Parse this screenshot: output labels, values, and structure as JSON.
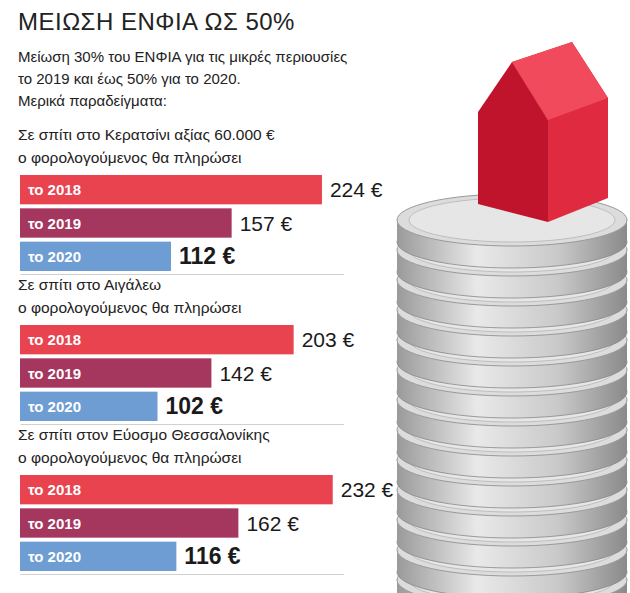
{
  "header": {
    "title": "ΜΕΙΩΣΗ ΕΝΦΙΑ ΩΣ 50%",
    "subtitle": [
      "Μείωση 30% του ΕΝΦΙΑ για τις μικρές περιουσίες",
      "το 2019 και έως 50% για το 2020.",
      "Μερικά παραδείγματα:"
    ]
  },
  "chart_data": [
    {
      "type": "bar",
      "orientation": "horizontal",
      "title": [
        "Σε σπίτι στο Κερατσίνι αξίας 60.000 €",
        "ο φορολογούμενος θα πληρώσει"
      ],
      "categories": [
        "το 2018",
        "το 2019",
        "το 2020"
      ],
      "values": [
        224,
        157,
        112
      ],
      "value_labels": [
        "224 €",
        "157 €",
        "112 €"
      ],
      "colors": [
        "#e8434f",
        "#a5365e",
        "#6d9dd3"
      ],
      "xlim": [
        0,
        240
      ],
      "xticks": [],
      "data_labels": true,
      "tick_labels": "y"
    },
    {
      "type": "bar",
      "orientation": "horizontal",
      "title": [
        "Σε σπίτι στο Αιγάλεω",
        "ο φορολογούμενος θα πληρώσει"
      ],
      "categories": [
        "το 2018",
        "το 2019",
        "το 2020"
      ],
      "values": [
        203,
        142,
        102
      ],
      "value_labels": [
        "203 €",
        "142 €",
        "102 €"
      ],
      "colors": [
        "#e8434f",
        "#a5365e",
        "#6d9dd3"
      ],
      "xlim": [
        0,
        240
      ],
      "xticks": [],
      "data_labels": true,
      "tick_labels": "y"
    },
    {
      "type": "bar",
      "orientation": "horizontal",
      "title": [
        "Σε σπίτι στον Εύοσμο Θεσσαλονίκης",
        "ο φορολογούμενος θα πληρώσει"
      ],
      "categories": [
        "το 2018",
        "το 2019",
        "το 2020"
      ],
      "values": [
        232,
        162,
        116
      ],
      "value_labels": [
        "232 €",
        "162 €",
        "116 €"
      ],
      "colors": [
        "#e8434f",
        "#a5365e",
        "#6d9dd3"
      ],
      "xlim": [
        0,
        240
      ],
      "xticks": [],
      "data_labels": true,
      "tick_labels": "y"
    }
  ]
}
